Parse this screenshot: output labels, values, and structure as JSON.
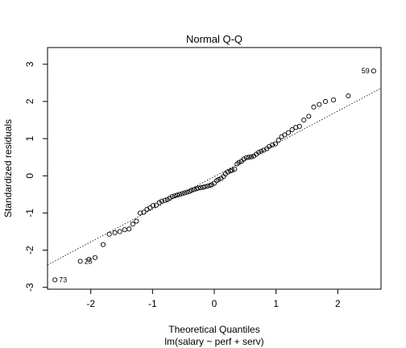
{
  "chart_data": {
    "type": "scatter",
    "title": "Normal Q-Q",
    "xlabel": "Theoretical Quantiles",
    "subtitle": "lm(salary ~ perf + serv)",
    "ylabel": "Standardized residuals",
    "xlim": [
      -2.7,
      2.7
    ],
    "ylim": [
      -3.05,
      3.45
    ],
    "x_ticks": [
      -2,
      -1,
      0,
      1,
      2
    ],
    "y_ticks": [
      -3,
      -2,
      -1,
      0,
      1,
      2,
      3
    ],
    "x_tick_labels": [
      "-2",
      "-1",
      "0",
      "1",
      "2"
    ],
    "y_tick_labels": [
      "-3",
      "-2",
      "-1",
      "0",
      "1",
      "2",
      "3"
    ],
    "reference_line": {
      "slope": 0.88,
      "intercept": -0.02
    },
    "grid": false,
    "legend": "none",
    "points": [
      {
        "x": -2.58,
        "y": -2.8,
        "label": "73"
      },
      {
        "x": -2.17,
        "y": -2.3,
        "label": "25"
      },
      {
        "x": -2.03,
        "y": -2.25
      },
      {
        "x": -1.93,
        "y": -2.2
      },
      {
        "x": -1.8,
        "y": -1.85
      },
      {
        "x": -1.7,
        "y": -1.57
      },
      {
        "x": -1.61,
        "y": -1.53
      },
      {
        "x": -1.53,
        "y": -1.5
      },
      {
        "x": -1.45,
        "y": -1.45
      },
      {
        "x": -1.38,
        "y": -1.43
      },
      {
        "x": -1.32,
        "y": -1.3
      },
      {
        "x": -1.26,
        "y": -1.22
      },
      {
        "x": -1.2,
        "y": -1.0
      },
      {
        "x": -1.14,
        "y": -0.98
      },
      {
        "x": -1.09,
        "y": -0.9
      },
      {
        "x": -1.04,
        "y": -0.86
      },
      {
        "x": -0.99,
        "y": -0.8
      },
      {
        "x": -0.94,
        "y": -0.79
      },
      {
        "x": -0.89,
        "y": -0.72
      },
      {
        "x": -0.85,
        "y": -0.68
      },
      {
        "x": -0.8,
        "y": -0.66
      },
      {
        "x": -0.76,
        "y": -0.64
      },
      {
        "x": -0.72,
        "y": -0.6
      },
      {
        "x": -0.68,
        "y": -0.56
      },
      {
        "x": -0.64,
        "y": -0.54
      },
      {
        "x": -0.6,
        "y": -0.52
      },
      {
        "x": -0.56,
        "y": -0.5
      },
      {
        "x": -0.52,
        "y": -0.48
      },
      {
        "x": -0.48,
        "y": -0.46
      },
      {
        "x": -0.44,
        "y": -0.44
      },
      {
        "x": -0.4,
        "y": -0.42
      },
      {
        "x": -0.37,
        "y": -0.39
      },
      {
        "x": -0.33,
        "y": -0.37
      },
      {
        "x": -0.29,
        "y": -0.35
      },
      {
        "x": -0.26,
        "y": -0.33
      },
      {
        "x": -0.22,
        "y": -0.32
      },
      {
        "x": -0.18,
        "y": -0.31
      },
      {
        "x": -0.15,
        "y": -0.29
      },
      {
        "x": -0.11,
        "y": -0.28
      },
      {
        "x": -0.07,
        "y": -0.26
      },
      {
        "x": -0.04,
        "y": -0.24
      },
      {
        "x": 0.0,
        "y": -0.2
      },
      {
        "x": 0.04,
        "y": -0.13
      },
      {
        "x": 0.07,
        "y": -0.1
      },
      {
        "x": 0.11,
        "y": -0.07
      },
      {
        "x": 0.15,
        "y": -0.02
      },
      {
        "x": 0.18,
        "y": 0.05
      },
      {
        "x": 0.22,
        "y": 0.1
      },
      {
        "x": 0.26,
        "y": 0.13
      },
      {
        "x": 0.29,
        "y": 0.15
      },
      {
        "x": 0.33,
        "y": 0.18
      },
      {
        "x": 0.37,
        "y": 0.32
      },
      {
        "x": 0.4,
        "y": 0.36
      },
      {
        "x": 0.44,
        "y": 0.39
      },
      {
        "x": 0.48,
        "y": 0.45
      },
      {
        "x": 0.52,
        "y": 0.49
      },
      {
        "x": 0.56,
        "y": 0.5
      },
      {
        "x": 0.6,
        "y": 0.51
      },
      {
        "x": 0.64,
        "y": 0.53
      },
      {
        "x": 0.68,
        "y": 0.58
      },
      {
        "x": 0.72,
        "y": 0.63
      },
      {
        "x": 0.76,
        "y": 0.66
      },
      {
        "x": 0.8,
        "y": 0.69
      },
      {
        "x": 0.85,
        "y": 0.73
      },
      {
        "x": 0.89,
        "y": 0.79
      },
      {
        "x": 0.94,
        "y": 0.83
      },
      {
        "x": 0.99,
        "y": 0.86
      },
      {
        "x": 1.04,
        "y": 0.96
      },
      {
        "x": 1.09,
        "y": 1.05
      },
      {
        "x": 1.14,
        "y": 1.1
      },
      {
        "x": 1.2,
        "y": 1.16
      },
      {
        "x": 1.26,
        "y": 1.24
      },
      {
        "x": 1.32,
        "y": 1.3
      },
      {
        "x": 1.38,
        "y": 1.33
      },
      {
        "x": 1.45,
        "y": 1.5
      },
      {
        "x": 1.53,
        "y": 1.6
      },
      {
        "x": 1.61,
        "y": 1.85
      },
      {
        "x": 1.7,
        "y": 1.92
      },
      {
        "x": 1.8,
        "y": 2.0
      },
      {
        "x": 1.93,
        "y": 2.04
      },
      {
        "x": 2.17,
        "y": 2.15
      },
      {
        "x": 2.58,
        "y": 2.82,
        "label": "59"
      }
    ]
  }
}
